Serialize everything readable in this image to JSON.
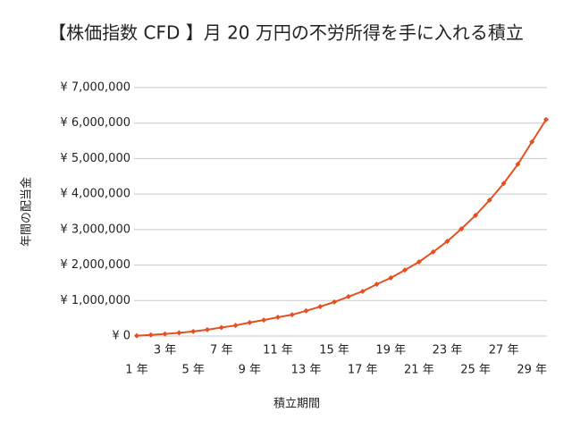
{
  "chart_data": {
    "type": "line",
    "title": "【株価指数 CFD 】月 20 万円の不労所得を手に入れる積立",
    "x_label": "積立期間",
    "y_label": "年間の配当金",
    "categories": [
      "1 年",
      null,
      "3 年",
      null,
      "5 年",
      null,
      "7 年",
      null,
      "9 年",
      null,
      "11 年",
      null,
      "13 年",
      null,
      "15 年",
      null,
      "17 年",
      null,
      "19 年",
      null,
      "21 年",
      null,
      "23 年",
      null,
      "25 年",
      null,
      "27 年",
      null,
      "29 年",
      null
    ],
    "series": [
      {
        "name": "年間の配当金",
        "color": "#e4501f",
        "values": [
          10000,
          30000,
          60000,
          90000,
          130000,
          180000,
          240000,
          300000,
          380000,
          450000,
          530000,
          600000,
          710000,
          830000,
          960000,
          1110000,
          1260000,
          1460000,
          1640000,
          1860000,
          2090000,
          2370000,
          2670000,
          3020000,
          3400000,
          3830000,
          4300000,
          4840000,
          5470000,
          6100000
        ]
      }
    ],
    "ylim": [
      0,
      7000000
    ],
    "yticks": [
      {
        "value": 0,
        "label": "¥ 0"
      },
      {
        "value": 1000000,
        "label": "¥ 1,000,000"
      },
      {
        "value": 2000000,
        "label": "¥ 2,000,000"
      },
      {
        "value": 3000000,
        "label": "¥ 3,000,000"
      },
      {
        "value": 4000000,
        "label": "¥ 4,000,000"
      },
      {
        "value": 5000000,
        "label": "¥ 5,000,000"
      },
      {
        "value": 6000000,
        "label": "¥ 6,000,000"
      },
      {
        "value": 7000000,
        "label": "¥ 7,000,000"
      }
    ],
    "grid": true
  }
}
